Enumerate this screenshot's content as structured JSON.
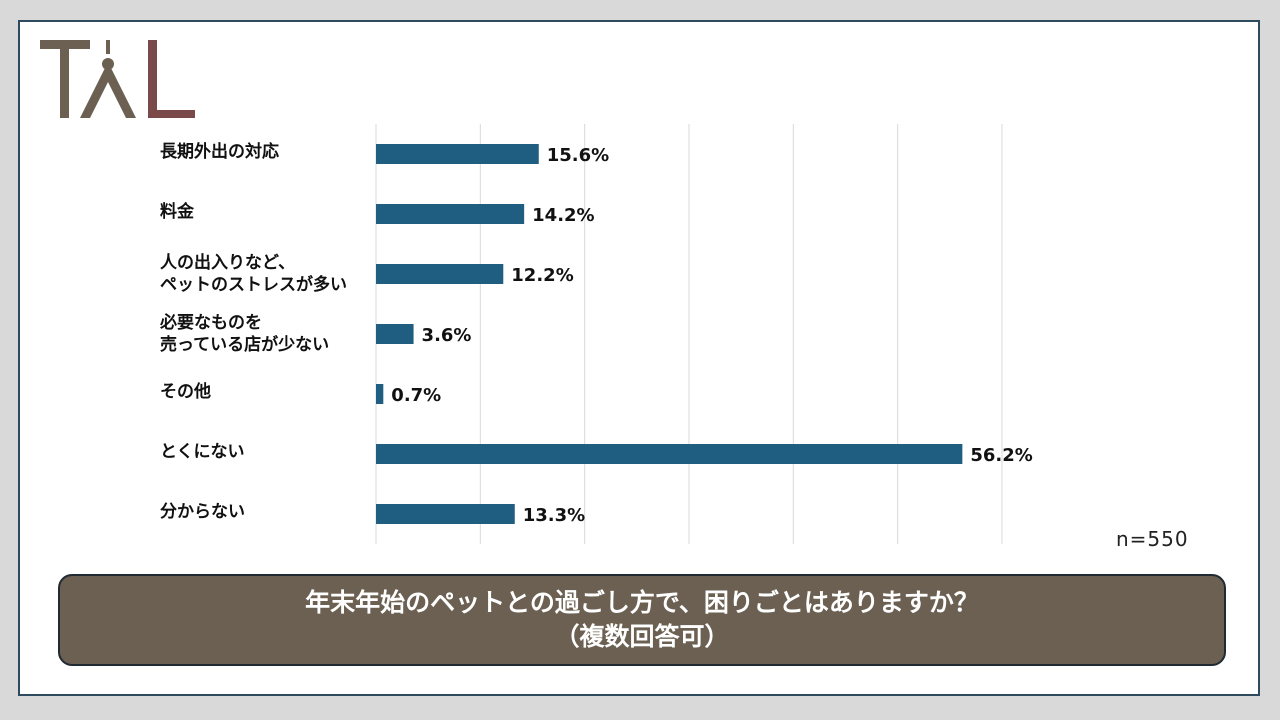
{
  "logo": {
    "text": "TAL",
    "colors": [
      "#6b6052",
      "#7a4a4a"
    ]
  },
  "n_label": "n=550",
  "title": {
    "line1": "年末年始のペットとの過ごし方で、困りごとはありますか？",
    "line2": "（複数回答可）"
  },
  "colors": {
    "bar": "#1f5e80",
    "title_bg": "#6b6052",
    "gridline": "#d9d9d9"
  },
  "chart_data": {
    "type": "bar",
    "orientation": "horizontal",
    "categories": [
      [
        "長期外出の対応"
      ],
      [
        "料金"
      ],
      [
        "人の出入りなど、",
        "ペットのストレスが多い"
      ],
      [
        "必要なものを",
        "売っている店が少ない"
      ],
      [
        "その他"
      ],
      [
        "とくにない"
      ],
      [
        "分からない"
      ]
    ],
    "values": [
      15.6,
      14.2,
      12.2,
      3.6,
      0.7,
      56.2,
      13.3
    ],
    "value_labels": [
      "15.6%",
      "14.2%",
      "12.2%",
      "3.6%",
      "0.7%",
      "56.2%",
      "13.3%"
    ],
    "xlim": [
      0,
      60
    ],
    "grid_step": 10,
    "grid": true
  }
}
